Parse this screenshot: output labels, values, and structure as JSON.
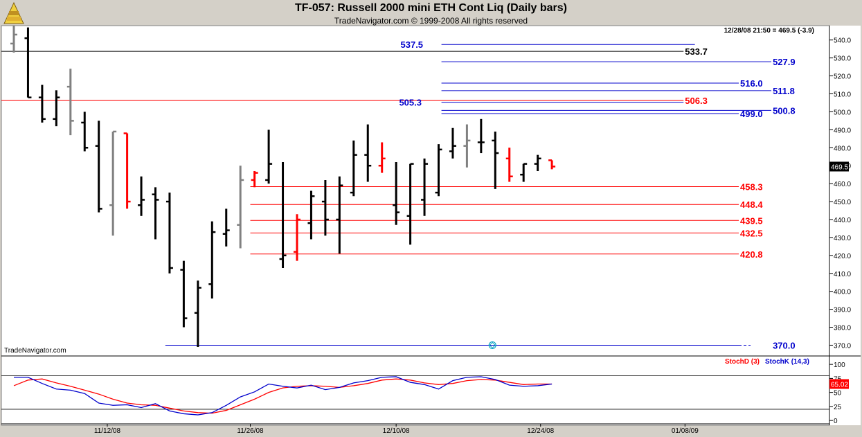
{
  "header": {
    "title": "TF-057:  Russell 2000 mini ETH Cont Liq  (Daily bars)",
    "subtitle": "TradeNavigator.com © 1999-2008 All rights reserved",
    "quote": "12/28/08 21:50 = 469.5 (-3.9)",
    "watermark": "TradeNavigator.com"
  },
  "colors": {
    "background": "#ffffff",
    "frame": "#d4d0c8",
    "up_bar": "#000000",
    "down_bar": "#ff0000",
    "neutral_bar": "#808080",
    "level_red": "#ff0000",
    "level_blue": "#0000cc",
    "stoch_d": "#ff0000",
    "stoch_k": "#0000cc"
  },
  "chart_data": [
    {
      "type": "ohlc",
      "ylim": [
        364,
        548
      ],
      "y_ticks": [
        370,
        380,
        390,
        400,
        410,
        420,
        430,
        440,
        450,
        460,
        470,
        480,
        490,
        500,
        510,
        520,
        530,
        540
      ],
      "x_tick_labels": [
        "11/12/08",
        "11/26/08",
        "12/10/08",
        "12/24/08",
        "01/08/09"
      ],
      "x_tick_bars": [
        6.6,
        16.7,
        27.0,
        37.2,
        47.4
      ],
      "last_price_label": "469.5",
      "bars": [
        {
          "o": 538,
          "h": 548,
          "l": 533,
          "c": 543,
          "col": "neutral"
        },
        {
          "o": 541,
          "h": 547,
          "l": 508,
          "c": 508,
          "col": "up"
        },
        {
          "o": 508,
          "h": 515,
          "l": 494,
          "c": 496,
          "col": "up"
        },
        {
          "o": 496,
          "h": 512,
          "l": 492,
          "c": 508,
          "col": "up"
        },
        {
          "o": 514,
          "h": 524,
          "l": 487,
          "c": 495,
          "col": "neutral"
        },
        {
          "o": 494,
          "h": 500,
          "l": 478,
          "c": 480,
          "col": "up"
        },
        {
          "o": 481,
          "h": 495,
          "l": 444,
          "c": 446,
          "col": "up"
        },
        {
          "o": 448,
          "h": 489,
          "l": 431,
          "c": 489,
          "col": "neutral"
        },
        {
          "o": 488,
          "h": 488,
          "l": 446,
          "c": 450,
          "col": "down"
        },
        {
          "o": 448,
          "h": 464,
          "l": 442,
          "c": 451,
          "col": "up"
        },
        {
          "o": 454,
          "h": 458,
          "l": 429,
          "c": 451,
          "col": "up"
        },
        {
          "o": 450,
          "h": 455,
          "l": 410,
          "c": 413,
          "col": "up"
        },
        {
          "o": 412,
          "h": 417,
          "l": 380,
          "c": 385,
          "col": "up"
        },
        {
          "o": 388,
          "h": 406,
          "l": 369,
          "c": 402,
          "col": "up"
        },
        {
          "o": 404,
          "h": 439,
          "l": 396,
          "c": 433,
          "col": "up"
        },
        {
          "o": 432,
          "h": 446,
          "l": 425,
          "c": 434,
          "col": "up"
        },
        {
          "o": 437,
          "h": 470,
          "l": 424,
          "c": 462,
          "col": "neutral"
        },
        {
          "o": 462,
          "h": 467,
          "l": 458,
          "c": 466,
          "col": "down"
        },
        {
          "o": 462,
          "h": 490,
          "l": 460,
          "c": 471,
          "col": "up"
        },
        {
          "o": 418,
          "h": 472,
          "l": 413,
          "c": 420,
          "col": "up"
        },
        {
          "o": 422,
          "h": 443,
          "l": 417,
          "c": 440,
          "col": "down"
        },
        {
          "o": 438,
          "h": 456,
          "l": 429,
          "c": 453,
          "col": "up"
        },
        {
          "o": 450,
          "h": 462,
          "l": 431,
          "c": 440,
          "col": "up"
        },
        {
          "o": 440,
          "h": 464,
          "l": 421,
          "c": 459,
          "col": "up"
        },
        {
          "o": 455,
          "h": 484,
          "l": 453,
          "c": 476,
          "col": "up"
        },
        {
          "o": 476,
          "h": 493,
          "l": 461,
          "c": 470,
          "col": "up"
        },
        {
          "o": 470,
          "h": 483,
          "l": 466,
          "c": 474,
          "col": "down"
        },
        {
          "o": 448,
          "h": 472,
          "l": 437,
          "c": 444,
          "col": "up"
        },
        {
          "o": 442,
          "h": 471,
          "l": 426,
          "c": 471,
          "col": "up"
        },
        {
          "o": 451,
          "h": 474,
          "l": 442,
          "c": 471,
          "col": "up"
        },
        {
          "o": 455,
          "h": 482,
          "l": 453,
          "c": 479,
          "col": "up"
        },
        {
          "o": 478,
          "h": 491,
          "l": 474,
          "c": 481,
          "col": "up"
        },
        {
          "o": 481,
          "h": 493,
          "l": 469,
          "c": 484,
          "col": "neutral"
        },
        {
          "o": 483,
          "h": 496,
          "l": 477,
          "c": 483,
          "col": "up"
        },
        {
          "o": 484,
          "h": 489,
          "l": 457,
          "c": 477,
          "col": "up"
        },
        {
          "o": 474,
          "h": 480,
          "l": 461,
          "c": 464,
          "col": "down"
        },
        {
          "o": 465,
          "h": 471,
          "l": 461,
          "c": 471,
          "col": "up"
        },
        {
          "o": 471,
          "h": 476,
          "l": 467,
          "c": 474,
          "col": "up"
        },
        {
          "o": 473,
          "h": 473,
          "l": 468,
          "c": 469.5,
          "col": "down"
        }
      ]
    },
    {
      "type": "line",
      "title": "StochD (3)   StochK (14,3)",
      "ylim": [
        -6,
        115
      ],
      "y_ticks": [
        0,
        25,
        50,
        75,
        100
      ],
      "hlines": [
        20,
        80
      ],
      "last_value_label": "65.02",
      "series": [
        {
          "name": "StochD (3)",
          "color": "#ff0000",
          "values": [
            62,
            72,
            74,
            67,
            61,
            54,
            47,
            38,
            31,
            28,
            27,
            22,
            17,
            14,
            13,
            18,
            28,
            38,
            50,
            58,
            61,
            62,
            61,
            59,
            62,
            66,
            72,
            74,
            72,
            67,
            64,
            66,
            71,
            73,
            72,
            68,
            64,
            65,
            65
          ]
        },
        {
          "name": "StochK (14,3)",
          "color": "#0000cc",
          "values": [
            77,
            77,
            66,
            56,
            54,
            48,
            31,
            27,
            28,
            23,
            30,
            17,
            12,
            10,
            14,
            27,
            42,
            51,
            65,
            61,
            58,
            63,
            55,
            59,
            67,
            71,
            77,
            78,
            68,
            64,
            56,
            71,
            77,
            78,
            73,
            63,
            61,
            62,
            65
          ]
        }
      ]
    }
  ],
  "levels": [
    {
      "value": 537.5,
      "label": "537.5",
      "color": "#0000cc",
      "from": 30.2,
      "to": 48.1,
      "label_at": "left",
      "label_bar": 29.0
    },
    {
      "value": 533.7,
      "label": "533.7",
      "color": "#000000",
      "from": 0,
      "to": 47.3,
      "label_at": "right"
    },
    {
      "value": 527.9,
      "label": "527.9",
      "color": "#0000cc",
      "from": 30.2,
      "to": 53.5,
      "label_at": "right"
    },
    {
      "value": 516.0,
      "label": "516.0",
      "color": "#0000cc",
      "from": 30.2,
      "to": 51.2,
      "label_at": "right"
    },
    {
      "value": 511.8,
      "label": "511.8",
      "color": "#0000cc",
      "from": 30.2,
      "to": 53.5,
      "label_at": "right"
    },
    {
      "value": 506.3,
      "label": "506.3",
      "color": "#ff0000",
      "from": 0,
      "to": 47.3,
      "label_at": "right"
    },
    {
      "value": 505.3,
      "label": "505.3",
      "color": "#0000cc",
      "from": 30.2,
      "to": 47.3,
      "label_at": "left",
      "label_bar": 28.9
    },
    {
      "value": 500.8,
      "label": "500.8",
      "color": "#0000cc",
      "from": 30.2,
      "to": 53.5,
      "label_at": "right"
    },
    {
      "value": 499.0,
      "label": "499.0",
      "color": "#0000cc",
      "from": 30.2,
      "to": 51.2,
      "label_at": "right"
    },
    {
      "value": 458.3,
      "label": "458.3",
      "color": "#ff0000",
      "from": 16.7,
      "to": 51.2,
      "label_at": "right"
    },
    {
      "value": 448.4,
      "label": "448.4",
      "color": "#ff0000",
      "from": 16.7,
      "to": 51.2,
      "label_at": "right"
    },
    {
      "value": 439.5,
      "label": "439.5",
      "color": "#ff0000",
      "from": 16.7,
      "to": 51.2,
      "label_at": "right"
    },
    {
      "value": 432.5,
      "label": "432.5",
      "color": "#ff0000",
      "from": 16.7,
      "to": 51.2,
      "label_at": "right"
    },
    {
      "value": 420.8,
      "label": "420.8",
      "color": "#ff0000",
      "from": 16.7,
      "to": 51.2,
      "label_at": "right"
    },
    {
      "value": 370.0,
      "label": "370.0",
      "color": "#0000cc",
      "from": 10.7,
      "to": 53.5,
      "label_at": "right",
      "dashed_from": 51.2,
      "marker_bar": 33.8
    }
  ]
}
